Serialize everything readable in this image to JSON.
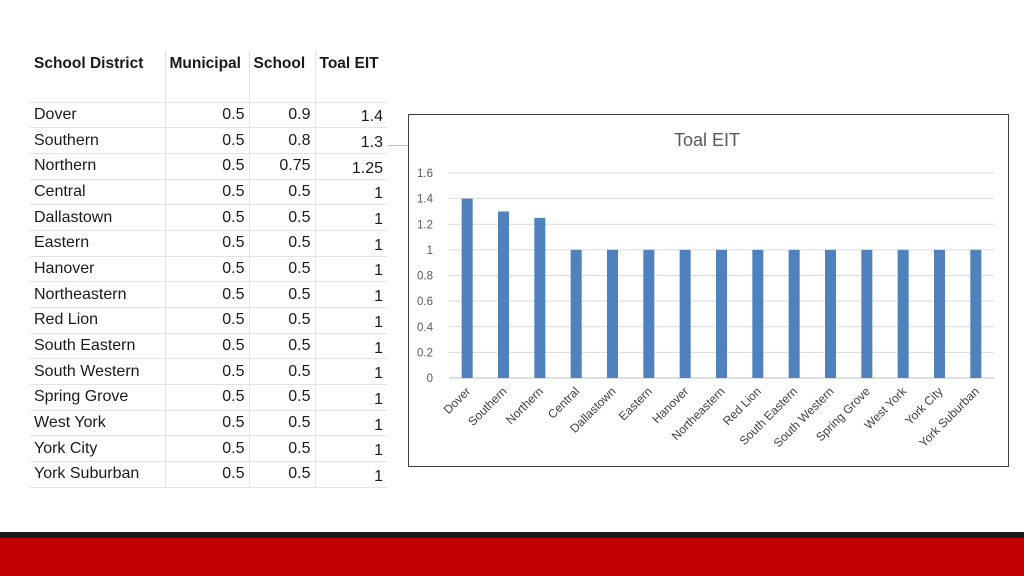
{
  "table": {
    "headers": [
      "School District",
      "Municipal",
      "School",
      "Toal EIT"
    ],
    "rows": [
      {
        "district": "Dover",
        "municipal": "0.5",
        "school": "0.9",
        "total": "1.4"
      },
      {
        "district": "Southern",
        "municipal": "0.5",
        "school": "0.8",
        "total": "1.3"
      },
      {
        "district": "Northern",
        "municipal": "0.5",
        "school": "0.75",
        "total": "1.25"
      },
      {
        "district": "Central",
        "municipal": "0.5",
        "school": "0.5",
        "total": "1"
      },
      {
        "district": "Dallastown",
        "municipal": "0.5",
        "school": "0.5",
        "total": "1"
      },
      {
        "district": "Eastern",
        "municipal": "0.5",
        "school": "0.5",
        "total": "1"
      },
      {
        "district": "Hanover",
        "municipal": "0.5",
        "school": "0.5",
        "total": "1"
      },
      {
        "district": "Northeastern",
        "municipal": "0.5",
        "school": "0.5",
        "total": "1"
      },
      {
        "district": "Red Lion",
        "municipal": "0.5",
        "school": "0.5",
        "total": "1"
      },
      {
        "district": "South Eastern",
        "municipal": "0.5",
        "school": "0.5",
        "total": "1"
      },
      {
        "district": "South Western",
        "municipal": "0.5",
        "school": "0.5",
        "total": "1"
      },
      {
        "district": "Spring Grove",
        "municipal": "0.5",
        "school": "0.5",
        "total": "1"
      },
      {
        "district": "West York",
        "municipal": "0.5",
        "school": "0.5",
        "total": "1"
      },
      {
        "district": "York City",
        "municipal": "0.5",
        "school": "0.5",
        "total": "1"
      },
      {
        "district": "York Suburban",
        "municipal": "0.5",
        "school": "0.5",
        "total": "1"
      }
    ]
  },
  "chart_data": {
    "type": "bar",
    "title": "Toal EIT",
    "xlabel": "",
    "ylabel": "",
    "categories": [
      "Dover",
      "Southern",
      "Northern",
      "Central",
      "Dallastown",
      "Eastern",
      "Hanover",
      "Northeastern",
      "Red Lion",
      "South Eastern",
      "South Western",
      "Spring Grove",
      "West York",
      "York City",
      "York Suburban"
    ],
    "values": [
      1.4,
      1.3,
      1.25,
      1,
      1,
      1,
      1,
      1,
      1,
      1,
      1,
      1,
      1,
      1,
      1
    ],
    "ylim": [
      0,
      1.6
    ],
    "yticks": [
      "0",
      "0.2",
      "0.4",
      "0.6",
      "0.8",
      "1",
      "1.2",
      "1.4",
      "1.6"
    ],
    "grid": true,
    "legend": "none",
    "bar_color": "#4f81bd"
  },
  "colors": {
    "footer_red": "#c00000",
    "footer_black": "#1a1a1a",
    "gridline": "#d9d9d9"
  }
}
